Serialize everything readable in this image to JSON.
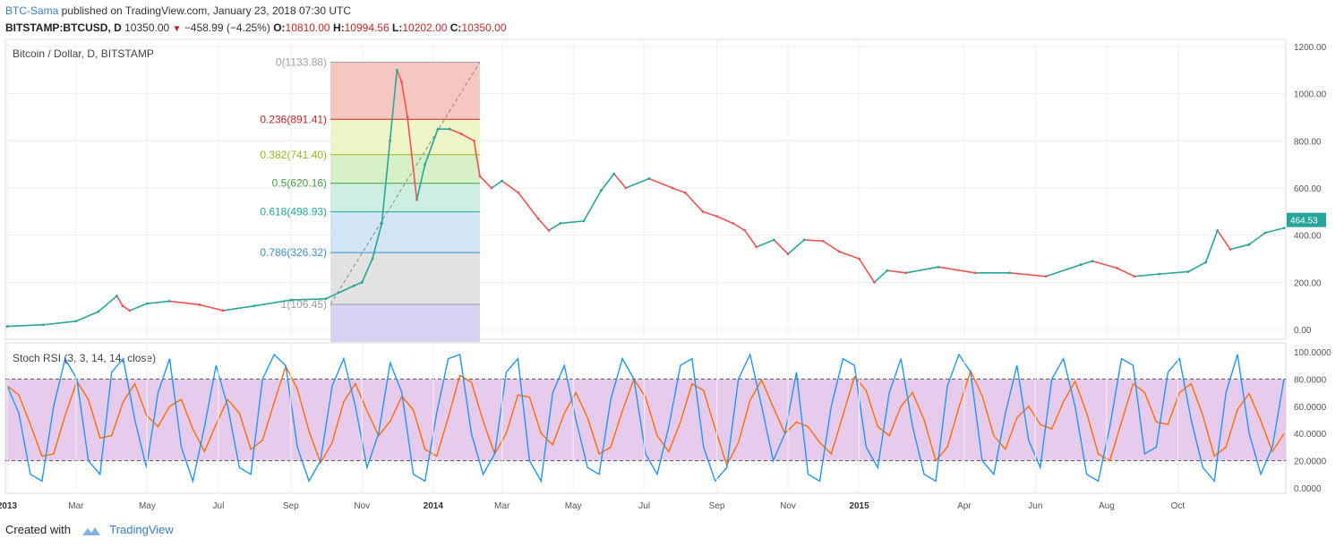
{
  "header": {
    "author": "BTC-Sama",
    "published": " published on TradingView.com, January 23, 2018 07:30 UTC",
    "symbol": "BITSTAMP:BTCUSD, D",
    "last": "10350.00",
    "change": "−458.99 (−4.25%)",
    "o_label": "O:",
    "o_val": "10810.00",
    "h_label": "H:",
    "h_val": "10994.56",
    "l_label": "L:",
    "l_val": "10202.00",
    "c_label": "C:",
    "c_val": "10350.00"
  },
  "footer": {
    "created": "Created with",
    "brand": "TradingView"
  },
  "colors": {
    "up": "#26a69a",
    "down": "#ef5350",
    "k_line": "#2196f3",
    "d_line": "#ff6d00",
    "rsi_band": "#e1bee7"
  },
  "chart_data": [
    {
      "type": "line",
      "title": "Bitcoin / Dollar, D, BITSTAMP",
      "note": "daily candlesticks approximated as close-price path",
      "x": [
        "2013-01-01",
        "2013-02-01",
        "2013-03-01",
        "2013-03-20",
        "2013-04-05",
        "2013-04-10",
        "2013-04-16",
        "2013-05-01",
        "2013-05-20",
        "2013-06-15",
        "2013-07-05",
        "2013-08-01",
        "2013-09-01",
        "2013-10-01",
        "2013-10-25",
        "2013-11-01",
        "2013-11-10",
        "2013-11-18",
        "2013-11-25",
        "2013-12-01",
        "2013-12-05",
        "2013-12-10",
        "2013-12-18",
        "2013-12-25",
        "2014-01-05",
        "2014-01-15",
        "2014-01-25",
        "2014-02-05",
        "2014-02-10",
        "2014-02-20",
        "2014-03-01",
        "2014-03-15",
        "2014-04-01",
        "2014-04-10",
        "2014-04-20",
        "2014-05-10",
        "2014-05-25",
        "2014-06-05",
        "2014-06-15",
        "2014-07-05",
        "2014-07-25",
        "2014-08-05",
        "2014-08-20",
        "2014-09-01",
        "2014-09-15",
        "2014-09-25",
        "2014-10-05",
        "2014-10-20",
        "2014-11-01",
        "2014-11-15",
        "2014-12-01",
        "2014-12-15",
        "2015-01-01",
        "2015-01-14",
        "2015-01-25",
        "2015-02-10",
        "2015-03-10",
        "2015-04-10",
        "2015-05-10",
        "2015-06-10",
        "2015-07-10",
        "2015-07-20",
        "2015-08-10",
        "2015-08-25",
        "2015-09-15",
        "2015-10-10",
        "2015-10-25",
        "2015-11-04",
        "2015-11-15",
        "2015-12-01",
        "2015-12-15",
        "2015-12-31"
      ],
      "series": [
        {
          "values": [
            13,
            20,
            35,
            75,
            142,
            100,
            80,
            110,
            120,
            105,
            80,
            100,
            125,
            130,
            185,
            200,
            300,
            450,
            800,
            1100,
            1050,
            900,
            550,
            700,
            850,
            850,
            830,
            800,
            650,
            600,
            630,
            580,
            470,
            420,
            450,
            460,
            590,
            660,
            600,
            640,
            600,
            580,
            500,
            480,
            450,
            420,
            350,
            380,
            320,
            380,
            375,
            330,
            300,
            200,
            250,
            240,
            265,
            240,
            240,
            225,
            275,
            290,
            260,
            225,
            235,
            245,
            285,
            420,
            340,
            360,
            410,
            430
          ]
        }
      ],
      "ylim": [
        0,
        1200
      ],
      "yticks": [
        "1200.00",
        "1000.00",
        "800.00",
        "600.00",
        "400.00",
        "200.00",
        "0.00"
      ],
      "xticks": [
        "2013",
        "Mar",
        "May",
        "Jul",
        "Sep",
        "Nov",
        "2014",
        "Mar",
        "May",
        "Jul",
        "Sep",
        "Nov",
        "2015",
        "Apr",
        "Jun",
        "Aug",
        "Oct"
      ],
      "last_price_label": "464.53",
      "fibonacci": [
        {
          "label": "0(1133.88)",
          "level": 1133.88,
          "color": "#9e9e9e",
          "fill": "#f4c7c3"
        },
        {
          "label": "0.236(891.41)",
          "level": 891.41,
          "color": "#c62828",
          "fill": "#eef5c7"
        },
        {
          "label": "0.382(741.40)",
          "level": 741.4,
          "color": "#9ab624",
          "fill": "#d7f0c8"
        },
        {
          "label": "0.5(620.16)",
          "level": 620.16,
          "color": "#43a047",
          "fill": "#cdeee0"
        },
        {
          "label": "0.618(498.93)",
          "level": 498.93,
          "color": "#26a69a",
          "fill": "#d2e6f3"
        },
        {
          "label": "0.786(326.32)",
          "level": 326.32,
          "color": "#3d8fd1",
          "fill": "#e2e2e2"
        },
        {
          "label": "1(106.45)",
          "level": 106.45,
          "color": "#9e9e9e",
          "fill": "#d6d2f1"
        }
      ]
    },
    {
      "type": "line",
      "title": "Stoch RSI (3, 3, 14, 14, close)",
      "series": [
        {
          "values": [
            75,
            55,
            10,
            5,
            60,
            95,
            80,
            20,
            10,
            85,
            95,
            50,
            15,
            70,
            95,
            30,
            5,
            45,
            90,
            60,
            15,
            10,
            80,
            98,
            90,
            30,
            5,
            20,
            75,
            95,
            60,
            15,
            40,
            92,
            70,
            10,
            5,
            55,
            95,
            98,
            40,
            10,
            25,
            85,
            95,
            20,
            5,
            70,
            90,
            50,
            15,
            10,
            65,
            95,
            80,
            25,
            10,
            45,
            90,
            95,
            30,
            5,
            15,
            80,
            98,
            60,
            20,
            40,
            85,
            10,
            5,
            60,
            95,
            90,
            30,
            15,
            70,
            95,
            45,
            10,
            5,
            75,
            98,
            85,
            20,
            10,
            55,
            90,
            35,
            15,
            80,
            95,
            60,
            10,
            5,
            45,
            95,
            90,
            25,
            30,
            85,
            95,
            50,
            15,
            5,
            70,
            98,
            40,
            10,
            30,
            80
          ]
        }
      ],
      "ylim": [
        0,
        100
      ],
      "yticks": [
        "100.0000",
        "80.0000",
        "60.0000",
        "40.0000",
        "20.0000",
        "0.0000"
      ],
      "bands": [
        20,
        80
      ]
    }
  ]
}
